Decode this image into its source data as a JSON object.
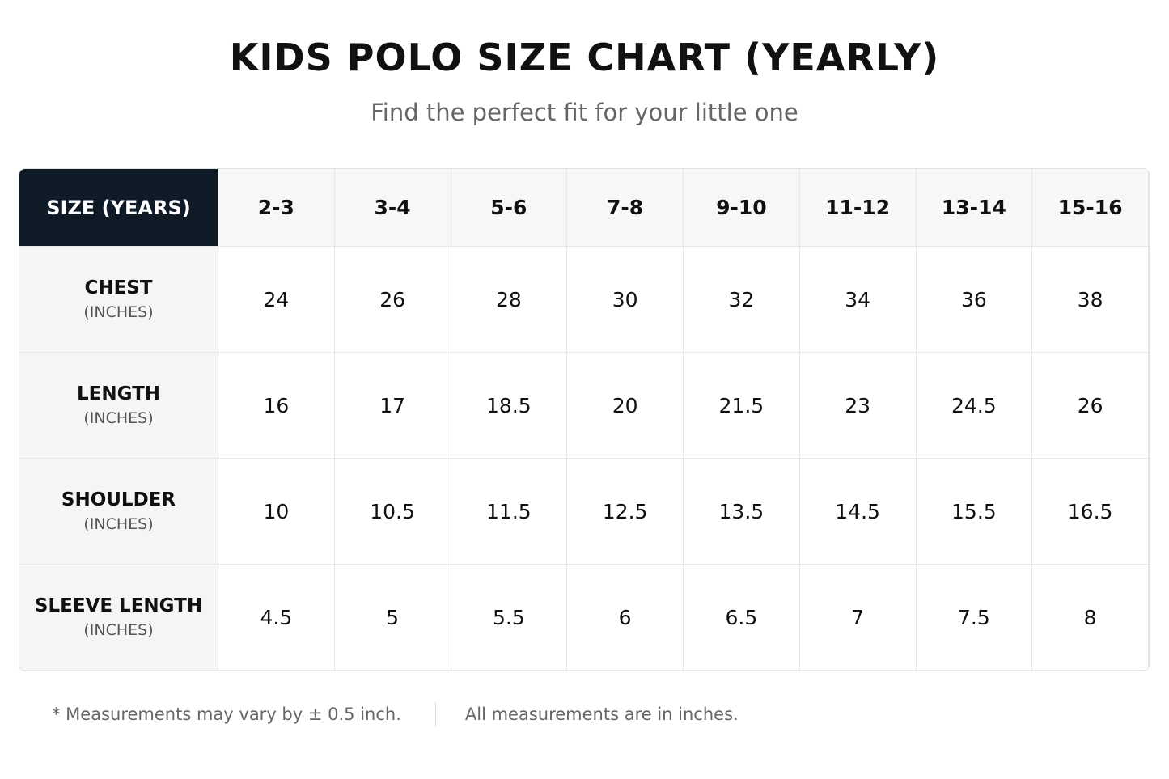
{
  "header": {
    "title": "KIDS POLO SIZE CHART (YEARLY)",
    "subtitle": "Find the perfect fit for your little one"
  },
  "table": {
    "corner": "SIZE (YEARS)",
    "columns": [
      "2-3",
      "3-4",
      "5-6",
      "7-8",
      "9-10",
      "11-12",
      "13-14",
      "15-16"
    ],
    "rows": [
      {
        "label": "CHEST",
        "unit": "(INCHES)",
        "values": [
          24,
          26,
          28,
          30,
          32,
          34,
          36,
          38
        ]
      },
      {
        "label": "LENGTH",
        "unit": "(INCHES)",
        "values": [
          16,
          17,
          18.5,
          20,
          21.5,
          23,
          24.5,
          26
        ]
      },
      {
        "label": "SHOULDER",
        "unit": "(INCHES)",
        "values": [
          10,
          10.5,
          11.5,
          12.5,
          13.5,
          14.5,
          15.5,
          16.5
        ]
      },
      {
        "label": "SLEEVE LENGTH",
        "unit": "(INCHES)",
        "values": [
          4.5,
          5,
          5.5,
          6,
          6.5,
          7,
          7.5,
          8
        ]
      }
    ]
  },
  "footer": {
    "note": "* Measurements may vary by ± 0.5 inch.",
    "info": "All measurements are in inches."
  }
}
